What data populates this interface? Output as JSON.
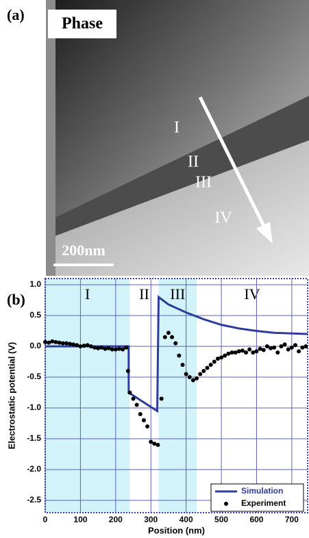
{
  "panel_a": {
    "label": "(a)",
    "title": "Phase",
    "regions": [
      "I",
      "II",
      "III",
      "IV"
    ],
    "scale_bar": "200nm"
  },
  "chart_data": {
    "type": "line",
    "label": "(b)",
    "x_label": "Position (nm)",
    "y_label": "Electrostatic potential (V)",
    "xlim": [
      0,
      745
    ],
    "ylim": [
      -2.7,
      1.1
    ],
    "xticks": [
      0,
      100,
      200,
      300,
      400,
      500,
      600,
      700
    ],
    "yticks": [
      {
        "value": 1,
        "label": "1.0"
      },
      0.5,
      {
        "value": 0,
        "label": "0.0"
      },
      -0.5,
      {
        "value": -1,
        "label": "-1.0"
      },
      -1.5,
      {
        "value": -2,
        "label": "-2.0"
      },
      -2.5
    ],
    "grid": true,
    "legend": "lower right",
    "regions": [
      {
        "label": "I",
        "start": 0,
        "end": 240,
        "shaded": true
      },
      {
        "label": "II",
        "start": 240,
        "end": 322,
        "shaded": false
      },
      {
        "label": "III",
        "start": 322,
        "end": 430,
        "shaded": true
      },
      {
        "label": "IV",
        "start": 430,
        "end": 745,
        "shaded": false
      }
    ],
    "shade_color": "#d3f3fb",
    "series": [
      {
        "name": "Simulation",
        "type": "line",
        "color": "#2e3d9c",
        "x": [
          0,
          237,
          237,
          318,
          322,
          350,
          400,
          450,
          500,
          550,
          600,
          650,
          700,
          745
        ],
        "values": [
          0,
          0,
          -0.75,
          -1.05,
          0.8,
          0.68,
          0.55,
          0.44,
          0.35,
          0.29,
          0.25,
          0.22,
          0.21,
          0.2
        ]
      },
      {
        "name": "Experiment",
        "type": "scatter",
        "color": "#000000",
        "x": [
          0,
          10,
          20,
          30,
          40,
          50,
          60,
          70,
          80,
          90,
          100,
          110,
          120,
          130,
          140,
          150,
          160,
          170,
          180,
          190,
          200,
          210,
          220,
          230,
          235,
          240,
          250,
          260,
          270,
          280,
          290,
          300,
          310,
          320,
          330,
          340,
          350,
          360,
          370,
          380,
          390,
          400,
          410,
          420,
          430,
          440,
          450,
          460,
          470,
          480,
          490,
          500,
          510,
          520,
          530,
          540,
          550,
          560,
          570,
          580,
          590,
          600,
          610,
          620,
          630,
          640,
          650,
          660,
          670,
          680,
          690,
          700,
          710,
          720,
          730,
          740
        ],
        "values": [
          0.07,
          0.06,
          0.08,
          0.07,
          0.06,
          0.05,
          0.05,
          0.04,
          0.03,
          0.02,
          0.0,
          0.01,
          0.02,
          0.0,
          -0.02,
          -0.03,
          -0.02,
          -0.04,
          -0.03,
          -0.05,
          -0.05,
          -0.04,
          -0.05,
          -0.02,
          -0.4,
          -0.75,
          -0.85,
          -0.95,
          -1.1,
          -1.2,
          -1.3,
          -1.55,
          -1.58,
          -1.6,
          -0.85,
          0.15,
          0.22,
          0.15,
          0.05,
          -0.15,
          -0.3,
          -0.45,
          -0.5,
          -0.55,
          -0.52,
          -0.45,
          -0.4,
          -0.35,
          -0.3,
          -0.25,
          -0.2,
          -0.18,
          -0.15,
          -0.12,
          -0.1,
          -0.1,
          -0.08,
          -0.07,
          -0.1,
          -0.05,
          -0.1,
          -0.08,
          -0.04,
          -0.06,
          0.0,
          -0.03,
          -0.02,
          -0.1,
          0.0,
          0.03,
          -0.05,
          -0.02,
          0.02,
          -0.08,
          -0.02,
          0.0
        ]
      }
    ]
  }
}
